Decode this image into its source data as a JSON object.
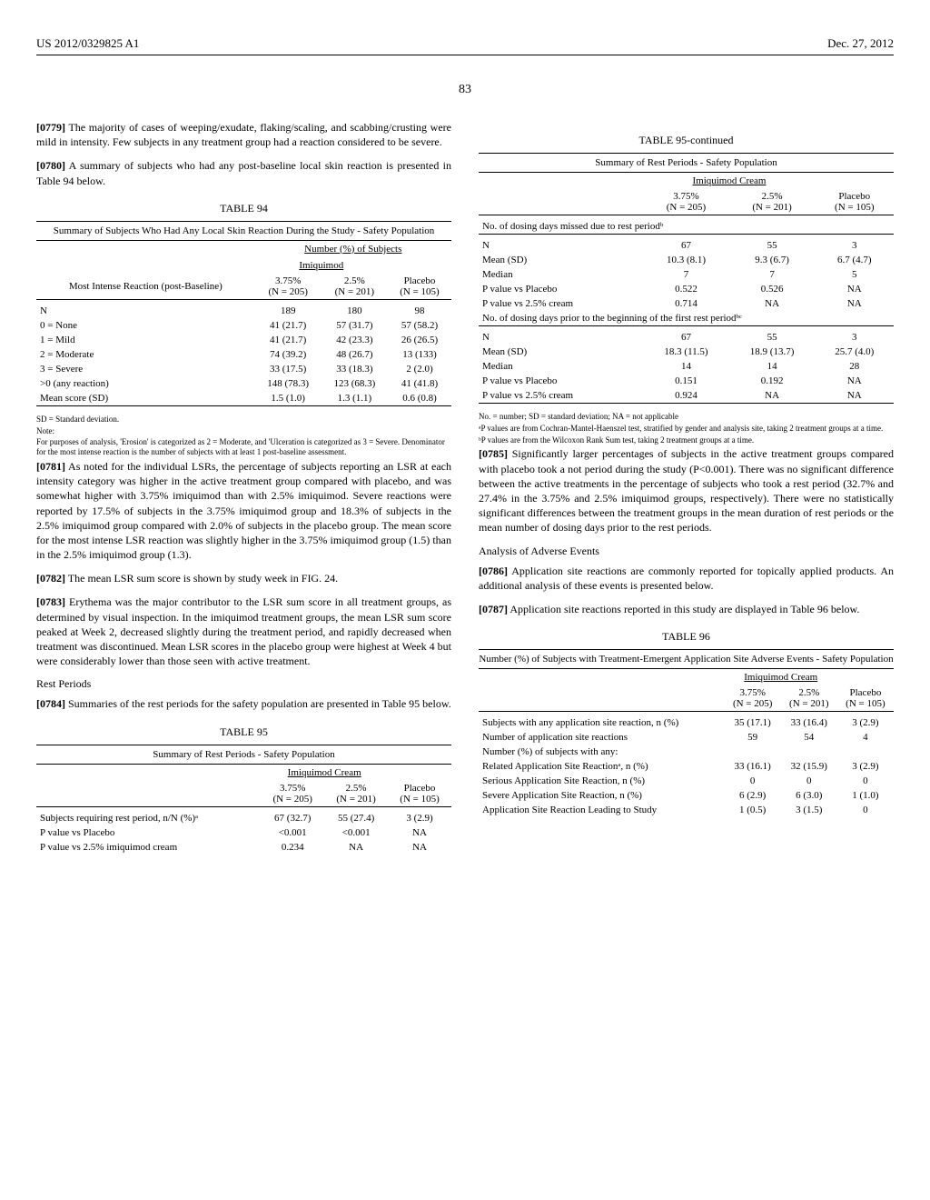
{
  "header": {
    "publication": "US 2012/0329825 A1",
    "date": "Dec. 27, 2012",
    "page_number": "83"
  },
  "left": {
    "para0779": {
      "num": "[0779]",
      "text": "The majority of cases of weeping/exudate, flaking/scaling, and scabbing/crusting were mild in intensity. Few subjects in any treatment group had a reaction considered to be severe."
    },
    "para0780": {
      "num": "[0780]",
      "text": "A summary of subjects who had any post-baseline local skin reaction is presented in Table 94 below."
    },
    "table94": {
      "label": "TABLE 94",
      "caption": "Summary of Subjects Who Had Any Local Skin Reaction During the Study - Safety Population",
      "col_group1": "Number (%) of Subjects",
      "col_group2": "Imiquimod",
      "row_label": "Most Intense Reaction (post-Baseline)",
      "cols": {
        "c1": "3.75%",
        "c1n": "(N = 205)",
        "c2": "2.5%",
        "c2n": "(N = 201)",
        "c3": "Placebo",
        "c3n": "(N = 105)"
      },
      "rows": [
        {
          "l": "N",
          "c1": "189",
          "c2": "180",
          "c3": "98"
        },
        {
          "l": "0 = None",
          "c1": "41 (21.7)",
          "c2": "57 (31.7)",
          "c3": "57 (58.2)"
        },
        {
          "l": "1 = Mild",
          "c1": "41 (21.7)",
          "c2": "42 (23.3)",
          "c3": "26 (26.5)"
        },
        {
          "l": "2 = Moderate",
          "c1": "74 (39.2)",
          "c2": "48 (26.7)",
          "c3": "13 (133)"
        },
        {
          "l": "3 = Severe",
          "c1": "33 (17.5)",
          "c2": "33 (18.3)",
          "c3": "2 (2.0)"
        },
        {
          "l": ">0 (any reaction)",
          "c1": "148 (78.3)",
          "c2": "123 (68.3)",
          "c3": "41 (41.8)"
        },
        {
          "l": "Mean score (SD)",
          "c1": "1.5 (1.0)",
          "c2": "1.3 (1.1)",
          "c3": "0.6 (0.8)"
        }
      ],
      "foot1": "SD = Standard deviation.",
      "foot2": "Note:",
      "foot3": "For purposes of analysis, 'Erosion' is categorized as 2 = Moderate, and 'Ulceration is categorized as 3 = Severe. Denominator for the most intense reaction is the number of subjects with at least 1 post-baseline assessment."
    },
    "para0781": {
      "num": "[0781]",
      "text": "As noted for the individual LSRs, the percentage of subjects reporting an LSR at each intensity category was higher in the active treatment group compared with placebo, and was somewhat higher with 3.75% imiquimod than with 2.5% imiquimod. Severe reactions were reported by 17.5% of subjects in the 3.75% imiquimod group and 18.3% of subjects in the 2.5% imiquimod group compared with 2.0% of subjects in the placebo group. The mean score for the most intense LSR reaction was slightly higher in the 3.75% imiquimod group (1.5) than in the 2.5% imiquimod group (1.3)."
    },
    "para0782": {
      "num": "[0782]",
      "text": "The mean LSR sum score is shown by study week in FIG. 24."
    },
    "para0783": {
      "num": "[0783]",
      "text": "Erythema was the major contributor to the LSR sum score in all treatment groups, as determined by visual inspection. In the imiquimod treatment groups, the mean LSR sum score peaked at Week 2, decreased slightly during the treatment period, and rapidly decreased when treatment was discontinued. Mean LSR scores in the placebo group were highest at Week 4 but were considerably lower than those seen with active treatment."
    },
    "rest_periods_head": "Rest Periods",
    "para0784": {
      "num": "[0784]",
      "text": "Summaries of the rest periods for the safety population are presented in Table 95 below."
    },
    "table95": {
      "label": "TABLE 95",
      "caption": "Summary of Rest Periods - Safety Population",
      "col_group": "Imiquimod Cream",
      "cols": {
        "c1": "3.75%",
        "c1n": "(N = 205)",
        "c2": "2.5%",
        "c2n": "(N = 201)",
        "c3": "Placebo",
        "c3n": "(N = 105)"
      },
      "rows": [
        {
          "l": "Subjects requiring rest period, n/N (%)ᵃ",
          "c1": "67 (32.7)",
          "c2": "55 (27.4)",
          "c3": "3 (2.9)"
        },
        {
          "l": "P value vs Placebo",
          "c1": "<0.001",
          "c2": "<0.001",
          "c3": "NA"
        },
        {
          "l": "P value vs 2.5% imiquimod cream",
          "c1": "0.234",
          "c2": "NA",
          "c3": "NA"
        }
      ]
    }
  },
  "right": {
    "table95cont": {
      "label": "TABLE 95-continued",
      "caption": "Summary of Rest Periods - Safety Population",
      "col_group": "Imiquimod Cream",
      "cols": {
        "c1": "3.75%",
        "c1n": "(N = 205)",
        "c2": "2.5%",
        "c2n": "(N = 201)",
        "c3": "Placebo",
        "c3n": "(N = 105)"
      },
      "section1_label": "No. of dosing days missed due to rest periodᵇ",
      "section1_rows": [
        {
          "l": "N",
          "c1": "67",
          "c2": "55",
          "c3": "3"
        },
        {
          "l": "Mean (SD)",
          "c1": "10.3 (8.1)",
          "c2": "9.3 (6.7)",
          "c3": "6.7 (4.7)"
        },
        {
          "l": "Median",
          "c1": "7",
          "c2": "7",
          "c3": "5"
        },
        {
          "l": "P value vs Placebo",
          "c1": "0.522",
          "c2": "0.526",
          "c3": "NA"
        },
        {
          "l": "P value vs 2.5% cream",
          "c1": "0.714",
          "c2": "NA",
          "c3": "NA"
        }
      ],
      "section2_label": "No. of dosing days prior to the beginning of the first rest periodᵇᶜ",
      "section2_rows": [
        {
          "l": "N",
          "c1": "67",
          "c2": "55",
          "c3": "3"
        },
        {
          "l": "Mean (SD)",
          "c1": "18.3 (11.5)",
          "c2": "18.9 (13.7)",
          "c3": "25.7 (4.0)"
        },
        {
          "l": "Median",
          "c1": "14",
          "c2": "14",
          "c3": "28"
        },
        {
          "l": "P value vs Placebo",
          "c1": "0.151",
          "c2": "0.192",
          "c3": "NA"
        },
        {
          "l": "P value vs 2.5% cream",
          "c1": "0.924",
          "c2": "NA",
          "c3": "NA"
        }
      ],
      "foot1": "No. = number; SD = standard deviation; NA = not applicable",
      "foot2": "ᵃP values are from Cochran-Mantel-Haenszel test, stratified by gender and analysis site, taking 2 treatment groups at a time.",
      "foot3": "ᵇP values are from the Wilcoxon Rank Sum test, taking 2 treatment groups at a time."
    },
    "para0785": {
      "num": "[0785]",
      "text": "Significantly larger percentages of subjects in the active treatment groups compared with placebo took a not period during the study (P<0.001). There was no significant difference between the active treatments in the percentage of subjects who took a rest period (32.7% and 27.4% in the 3.75% and 2.5% imiquimod groups, respectively). There were no statistically significant differences between the treatment groups in the mean duration of rest periods or the mean number of dosing days prior to the rest periods."
    },
    "adverse_head": "Analysis of Adverse Events",
    "para0786": {
      "num": "[0786]",
      "text": "Application site reactions are commonly reported for topically applied products. An additional analysis of these events is presented below."
    },
    "para0787": {
      "num": "[0787]",
      "text": "Application site reactions reported in this study are displayed in Table 96 below."
    },
    "table96": {
      "label": "TABLE 96",
      "caption": "Number (%) of Subjects with Treatment-Emergent Application Site Adverse Events - Safety Population",
      "col_group": "Imiquimod Cream",
      "cols": {
        "c1": "3.75%",
        "c1n": "(N = 205)",
        "c2": "2.5%",
        "c2n": "(N = 201)",
        "c3": "Placebo",
        "c3n": "(N = 105)"
      },
      "rows": [
        {
          "l": "Subjects with any application site reaction, n (%)",
          "c1": "35  (17.1)",
          "c2": "33  (16.4)",
          "c3": "3  (2.9)"
        },
        {
          "l": "Number of application site reactions",
          "c1": "59",
          "c2": "54",
          "c3": "4"
        },
        {
          "l": "Number (%) of subjects with any:",
          "c1": "",
          "c2": "",
          "c3": ""
        },
        {
          "l": "Related Application Site Reactionᵃ, n (%)",
          "c1": "33  (16.1)",
          "c2": "32  (15.9)",
          "c3": "3  (2.9)"
        },
        {
          "l": "Serious Application Site Reaction, n (%)",
          "c1": "0",
          "c2": "0",
          "c3": "0"
        },
        {
          "l": "Severe Application Site Reaction, n (%)",
          "c1": "6  (2.9)",
          "c2": "6  (3.0)",
          "c3": "1  (1.0)"
        },
        {
          "l": "Application Site Reaction Leading to Study",
          "c1": "1  (0.5)",
          "c2": "3  (1.5)",
          "c3": "0"
        }
      ]
    }
  }
}
